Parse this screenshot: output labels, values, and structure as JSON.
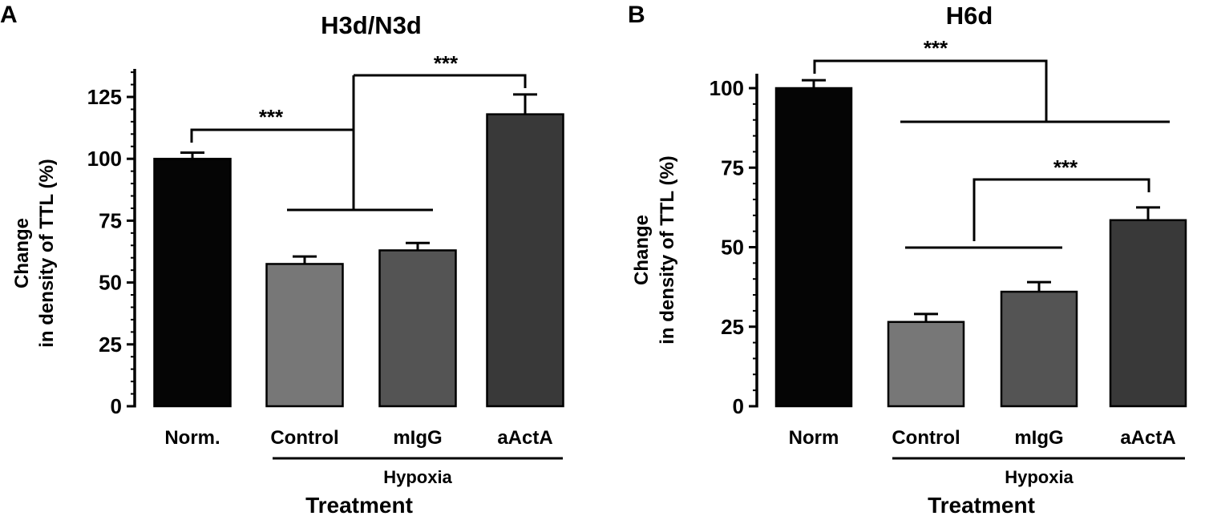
{
  "chart_data": [
    {
      "panel_label": "A",
      "type": "bar",
      "title": "H3d/N3d",
      "ylabel_lines": [
        "Change",
        "in density of TTL (%)"
      ],
      "xlabel": "Treatment",
      "group_label": "Hypoxia",
      "ylim": [
        0,
        135
      ],
      "yticks": [
        0,
        25,
        50,
        75,
        100,
        125
      ],
      "categories": [
        "Norm.",
        "Control",
        "mIgG",
        "aActA"
      ],
      "values": [
        100,
        57.5,
        63,
        118
      ],
      "errors": [
        2.5,
        3,
        3,
        8
      ],
      "bar_colors": [
        "#050505",
        "#777777",
        "#545454",
        "#393939"
      ],
      "significance": [
        {
          "label": "***",
          "between": "Norm. vs Control, mIgG"
        },
        {
          "label": "***",
          "between": "Control, mIgG vs aActA"
        }
      ]
    },
    {
      "panel_label": "B",
      "type": "bar",
      "title": "H6d",
      "ylabel_lines": [
        "Change",
        "in density of TTL (%)"
      ],
      "xlabel": "Treatment",
      "group_label": "Hypoxia",
      "ylim": [
        0,
        100
      ],
      "yticks": [
        0,
        25,
        50,
        75,
        100
      ],
      "categories": [
        "Norm",
        "Control",
        "mIgG",
        "aActA"
      ],
      "values": [
        100,
        26.5,
        36,
        58.5
      ],
      "errors": [
        2.5,
        2.5,
        3,
        4
      ],
      "bar_colors": [
        "#050505",
        "#777777",
        "#545454",
        "#393939"
      ],
      "significance": [
        {
          "label": "***",
          "between": "Norm vs Control, mIgG, aActA"
        },
        {
          "label": "***",
          "between": "Control, mIgG vs aActA"
        }
      ]
    }
  ]
}
